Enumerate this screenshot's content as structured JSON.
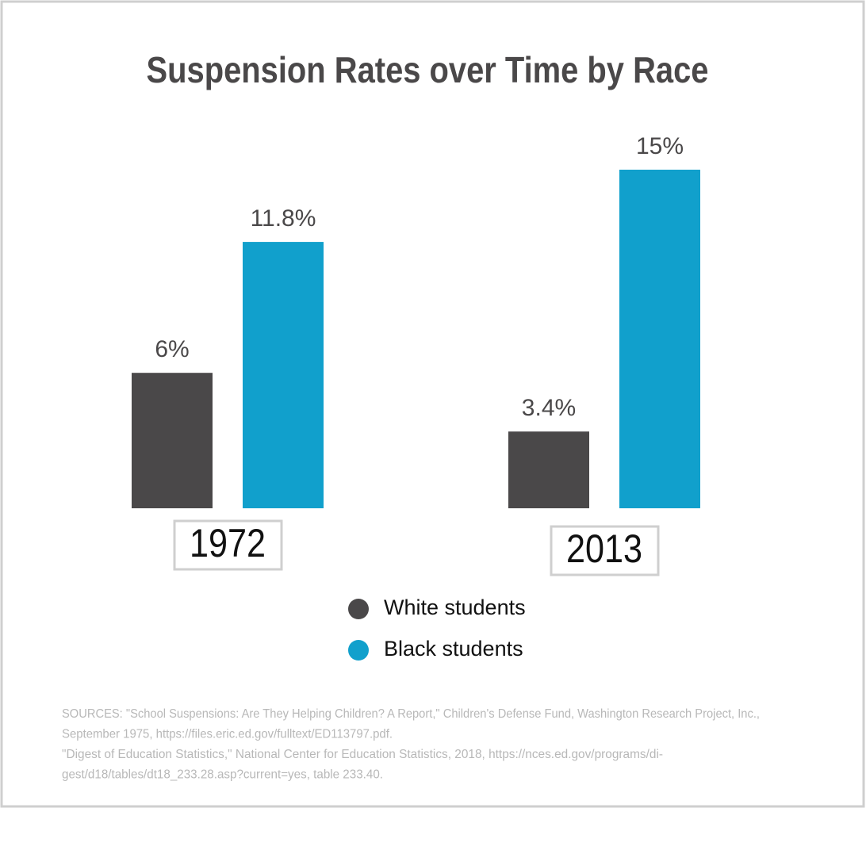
{
  "chart_data": {
    "type": "bar",
    "title": "Suspension Rates over Time by Race",
    "categories": [
      "1972",
      "2013"
    ],
    "series": [
      {
        "name": "White students",
        "color": "#4a4849",
        "values": [
          6,
          3.4
        ],
        "value_labels": [
          "6%",
          "3.4%"
        ]
      },
      {
        "name": "Black students",
        "color": "#11a0cc",
        "values": [
          11.8,
          15
        ],
        "value_labels": [
          "11.8%",
          "15%"
        ]
      }
    ],
    "sources": [
      "SOURCES:  \"School Suspensions: Are They Helping Children? A Report,\" Children's Defense Fund, Washington Research Project, Inc.,",
      "September 1975, https://files.eric.ed.gov/fulltext/ED113797.pdf.",
      "\"Digest of Education Statistics,\" National Center for Education Statistics, 2018, https://nces.ed.gov/programs/di-",
      "gest/d18/tables/dt18_233.28.asp?current=yes, table 233.40."
    ]
  }
}
